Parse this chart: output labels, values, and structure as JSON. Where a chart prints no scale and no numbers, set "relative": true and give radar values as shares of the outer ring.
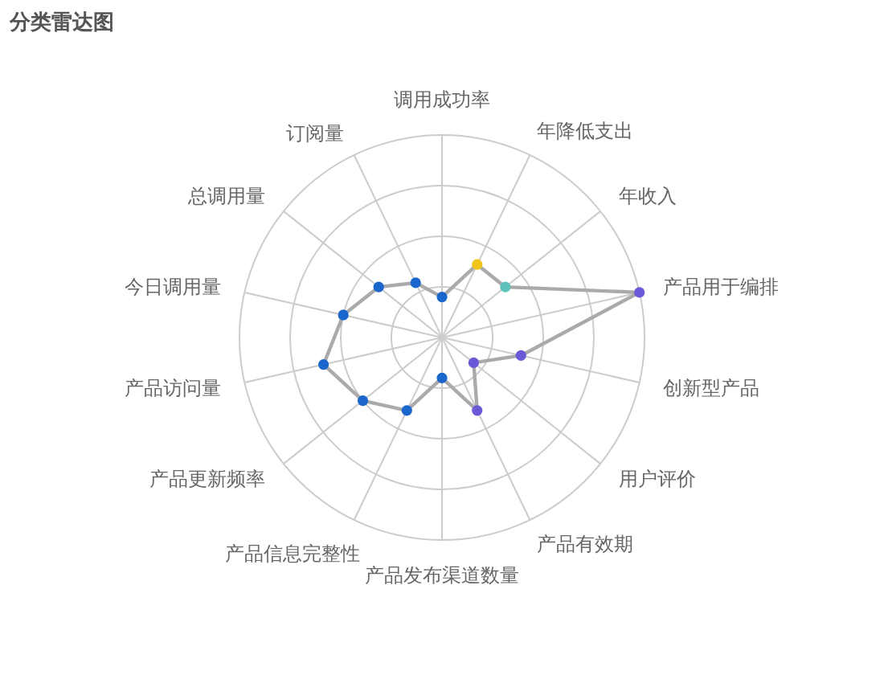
{
  "chart_data": {
    "type": "radar",
    "title": "分类雷达图",
    "categories": [
      "调用成功率",
      "年降低支出",
      "年收入",
      "产品用于编排",
      "创新型产品",
      "用户评价",
      "产品有效期",
      "产品发布渠道数量",
      "产品信息完整性",
      "产品更新频率",
      "产品访问量",
      "今日调用量",
      "总调用量",
      "订阅量"
    ],
    "series": [
      {
        "color": "#aaaaaa",
        "values": [
          0.2,
          0.4,
          0.4,
          1,
          0.4,
          0.2,
          0.4,
          0.2,
          0.4,
          0.5,
          0.6,
          0.5,
          0.4,
          0.3
        ],
        "colors": [
          "#1a66cc",
          "#f0c419",
          "#5cc2bb",
          "#6a5ad8",
          "#6a5ad8",
          "#6a5ad8",
          "#6a5ad8",
          "#1a66cc",
          "#1a66cc",
          "#1a66cc",
          "#1a66cc",
          "#1a66cc",
          "#1a66cc",
          "#1a66cc"
        ]
      }
    ],
    "relative": true,
    "grid": true,
    "marker": "circle"
  }
}
